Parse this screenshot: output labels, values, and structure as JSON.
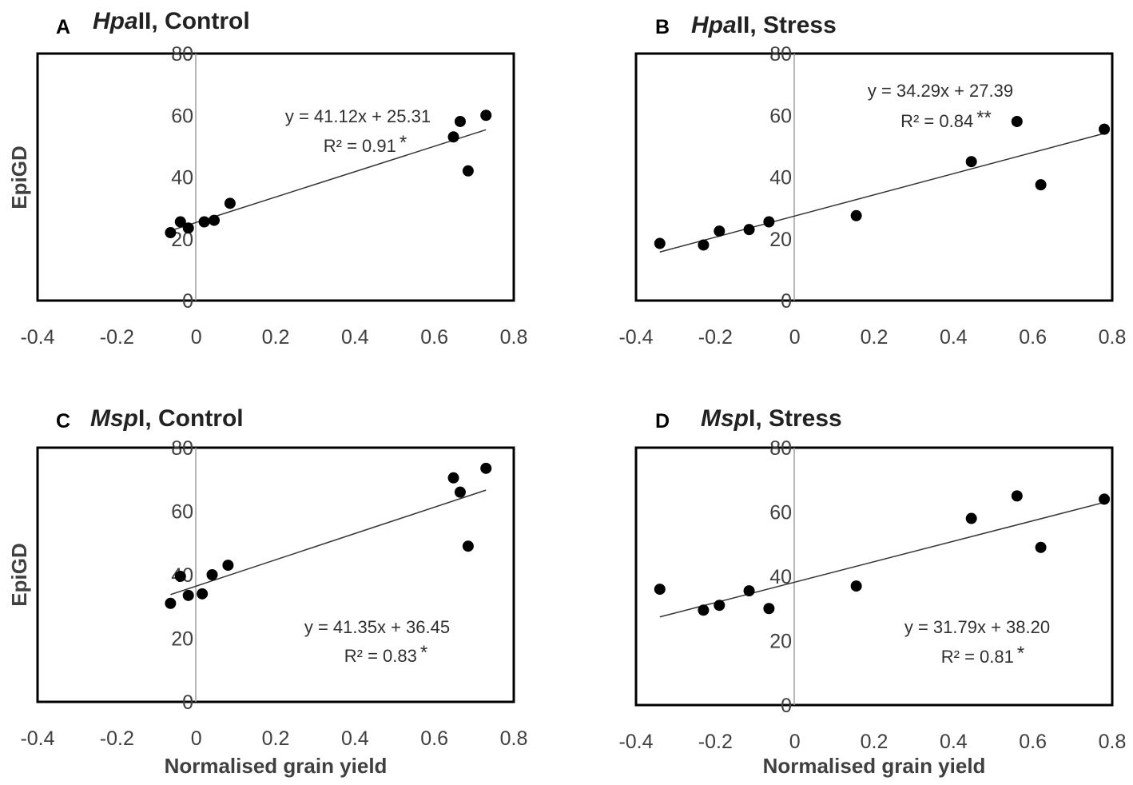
{
  "chart_data": [
    {
      "type": "scatter",
      "panel": "A",
      "title_italic": "Hpa",
      "title_rest": "II, Control",
      "ylabel": "EpiGD",
      "xlabel": "",
      "xlim": [
        -0.4,
        0.8
      ],
      "ylim": [
        0,
        80
      ],
      "xticks": [
        "-0.4",
        "-0.2",
        "0",
        "0.2",
        "0.4",
        "0.6",
        "0.8"
      ],
      "yticks": [
        "0",
        "20",
        "40",
        "60",
        "80"
      ],
      "points": [
        {
          "x": -0.065,
          "y": 22
        },
        {
          "x": -0.04,
          "y": 25.5
        },
        {
          "x": -0.02,
          "y": 23.5
        },
        {
          "x": 0.02,
          "y": 25.5
        },
        {
          "x": 0.045,
          "y": 26
        },
        {
          "x": 0.085,
          "y": 31.5
        },
        {
          "x": 0.648,
          "y": 53
        },
        {
          "x": 0.665,
          "y": 58
        },
        {
          "x": 0.685,
          "y": 42
        },
        {
          "x": 0.73,
          "y": 60
        }
      ],
      "trend": {
        "slope": 41.12,
        "intercept": 25.31,
        "x_range": [
          -0.065,
          0.73
        ]
      },
      "equation": "y = 41.12x + 25.31",
      "r2": "R² = 0.91",
      "significance": "*",
      "annotation_pos": "top-right"
    },
    {
      "type": "scatter",
      "panel": "B",
      "title_italic": "Hpa",
      "title_rest": "II, Stress",
      "ylabel": "",
      "xlabel": "",
      "xlim": [
        -0.4,
        0.8
      ],
      "ylim": [
        0,
        80
      ],
      "xticks": [
        "-0.4",
        "-0.2",
        "0",
        "0.2",
        "0.4",
        "0.6",
        "0.8"
      ],
      "yticks": [
        "0",
        "20",
        "40",
        "60",
        "80"
      ],
      "points": [
        {
          "x": -0.34,
          "y": 18.5
        },
        {
          "x": -0.23,
          "y": 18
        },
        {
          "x": -0.19,
          "y": 22.5
        },
        {
          "x": -0.115,
          "y": 23
        },
        {
          "x": -0.065,
          "y": 25.5
        },
        {
          "x": 0.155,
          "y": 27.5
        },
        {
          "x": 0.445,
          "y": 45
        },
        {
          "x": 0.56,
          "y": 58
        },
        {
          "x": 0.62,
          "y": 37.5
        },
        {
          "x": 0.78,
          "y": 55.5
        }
      ],
      "trend": {
        "slope": 34.29,
        "intercept": 27.39,
        "x_range": [
          -0.34,
          0.78
        ]
      },
      "equation": "y = 34.29x + 27.39",
      "r2": "R² = 0.84",
      "significance": "**",
      "annotation_pos": "top-right"
    },
    {
      "type": "scatter",
      "panel": "C",
      "title_italic": "Msp",
      "title_rest": "I, Control",
      "ylabel": "EpiGD",
      "xlabel": "Normalised grain yield",
      "xlim": [
        -0.4,
        0.8
      ],
      "ylim": [
        0,
        80
      ],
      "xticks": [
        "-0.4",
        "-0.2",
        "0",
        "0.2",
        "0.4",
        "0.6",
        "0.8"
      ],
      "yticks": [
        "0",
        "20",
        "40",
        "60",
        "80"
      ],
      "points": [
        {
          "x": -0.065,
          "y": 31
        },
        {
          "x": -0.04,
          "y": 39.5
        },
        {
          "x": -0.02,
          "y": 33.5
        },
        {
          "x": 0.015,
          "y": 34
        },
        {
          "x": 0.04,
          "y": 40
        },
        {
          "x": 0.08,
          "y": 43
        },
        {
          "x": 0.648,
          "y": 70.5
        },
        {
          "x": 0.665,
          "y": 66
        },
        {
          "x": 0.685,
          "y": 49
        },
        {
          "x": 0.73,
          "y": 73.5
        }
      ],
      "trend": {
        "slope": 41.35,
        "intercept": 36.45,
        "x_range": [
          -0.065,
          0.73
        ]
      },
      "equation": "y = 41.35x + 36.45",
      "r2": "R² = 0.83",
      "significance": "*",
      "annotation_pos": "bottom-right"
    },
    {
      "type": "scatter",
      "panel": "D",
      "title_italic": "Msp",
      "title_rest": "I, Stress",
      "ylabel": "",
      "xlabel": "Normalised grain yield",
      "xlim": [
        -0.4,
        0.8
      ],
      "ylim": [
        0,
        80
      ],
      "xticks": [
        "-0.4",
        "-0.2",
        "0",
        "0.2",
        "0.4",
        "0.6",
        "0.8"
      ],
      "yticks": [
        "0",
        "20",
        "40",
        "60",
        "80"
      ],
      "points": [
        {
          "x": -0.34,
          "y": 36
        },
        {
          "x": -0.23,
          "y": 29.5
        },
        {
          "x": -0.19,
          "y": 31
        },
        {
          "x": -0.115,
          "y": 35.5
        },
        {
          "x": -0.065,
          "y": 30
        },
        {
          "x": 0.155,
          "y": 37
        },
        {
          "x": 0.445,
          "y": 58
        },
        {
          "x": 0.56,
          "y": 65
        },
        {
          "x": 0.62,
          "y": 49
        },
        {
          "x": 0.78,
          "y": 64
        }
      ],
      "trend": {
        "slope": 31.79,
        "intercept": 38.2,
        "x_range": [
          -0.34,
          0.78
        ]
      },
      "equation": "y = 31.79x + 38.20",
      "r2": "R² = 0.81",
      "significance": "*",
      "annotation_pos": "bottom-right"
    }
  ]
}
